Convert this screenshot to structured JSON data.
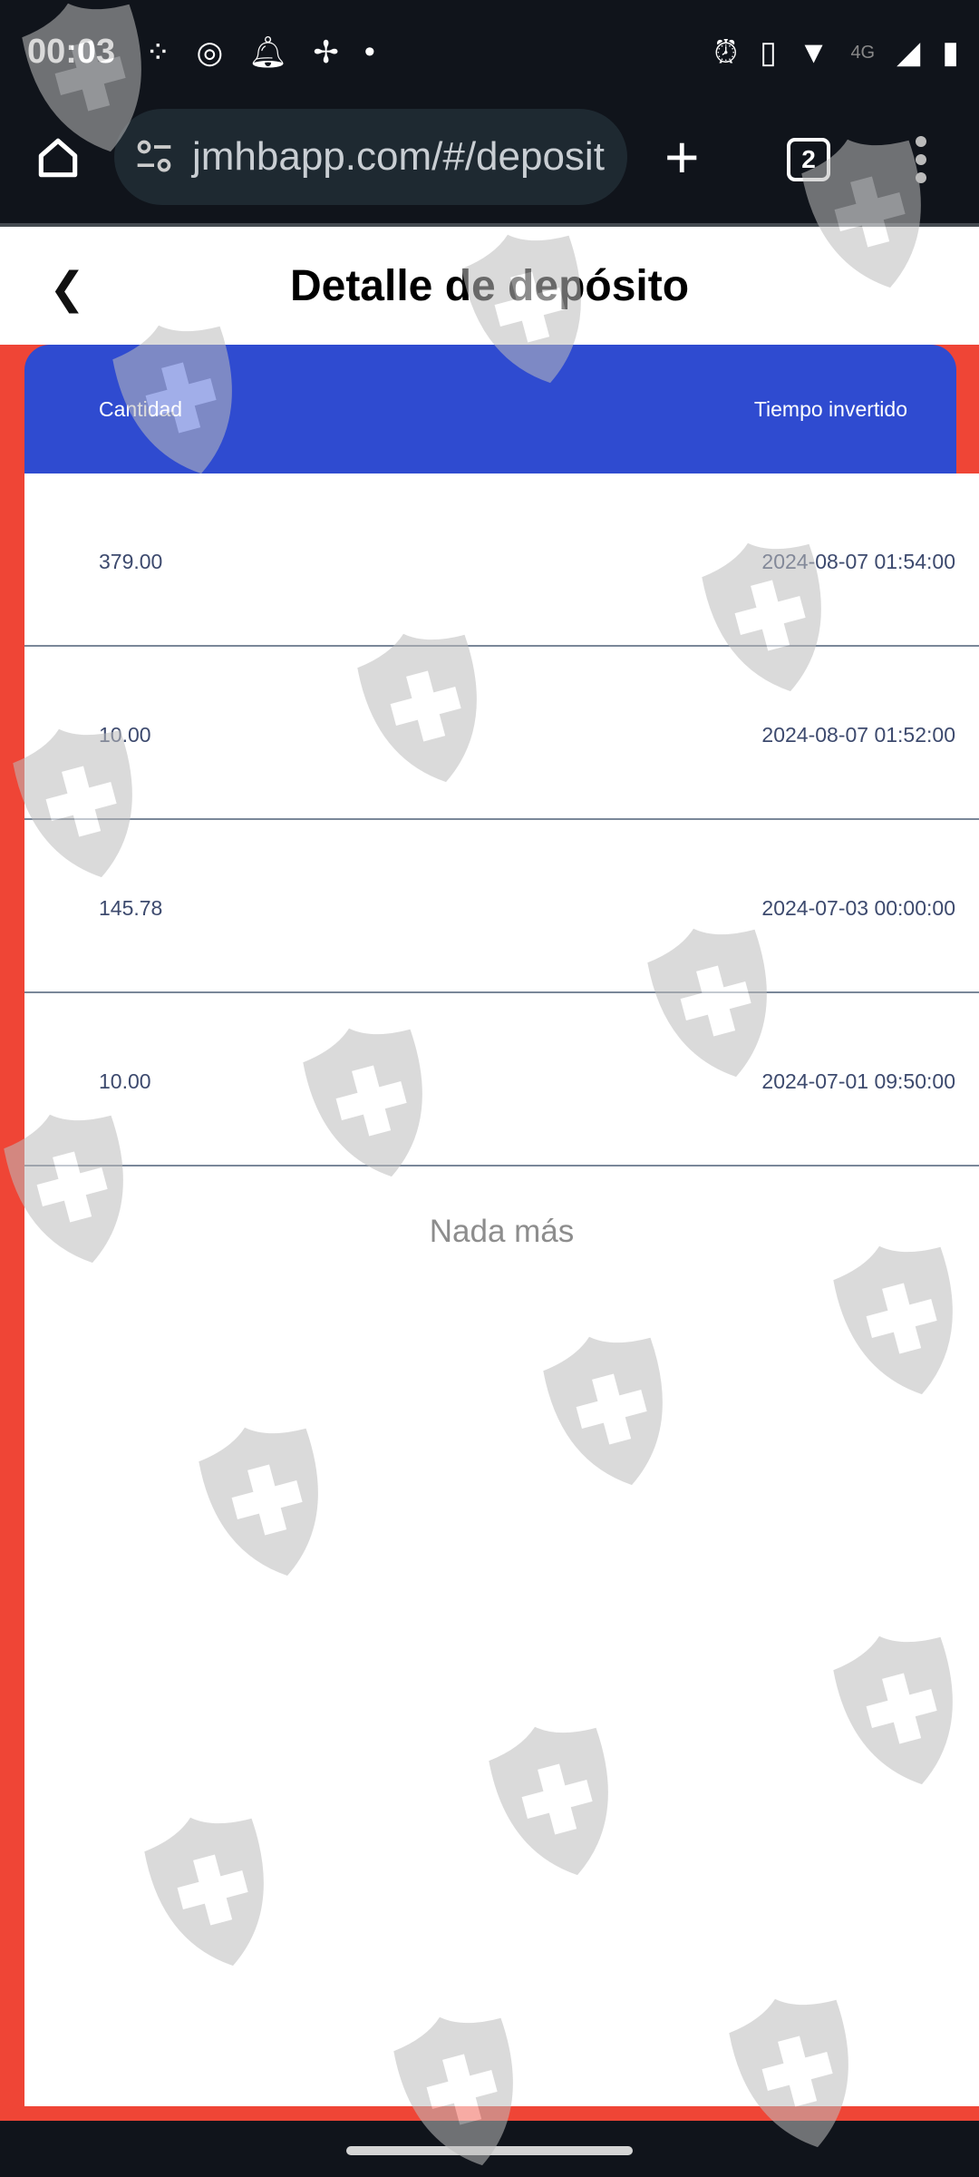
{
  "status_bar": {
    "time": "00:03",
    "network": "4G",
    "left_icons": [
      "notification-app-icon",
      "instagram-icon",
      "bell-icon",
      "pinwheel-icon",
      "dot-icon"
    ],
    "right_icons": [
      "alarm-icon",
      "vibrate-icon",
      "wifi-icon",
      "signal-icon",
      "battery-icon"
    ]
  },
  "browser": {
    "url": "jmhbapp.com/#/deposit",
    "tab_count": "2"
  },
  "header": {
    "title": "Detalle de depósito"
  },
  "table": {
    "columns": [
      "Cantidad",
      "Tiempo invertido"
    ],
    "rows": [
      {
        "amount": "379.00",
        "time": "2024-08-07 01:54:00"
      },
      {
        "amount": "10.00",
        "time": "2024-08-07 01:52:00"
      },
      {
        "amount": "145.78",
        "time": "2024-07-03 00:00:00"
      },
      {
        "amount": "10.00",
        "time": "2024-07-01 09:50:00"
      }
    ],
    "end_text": "Nada más"
  },
  "colors": {
    "accent_blue": "#2f4bd0",
    "background_red": "#ef4536",
    "system_bar": "#10141b"
  }
}
